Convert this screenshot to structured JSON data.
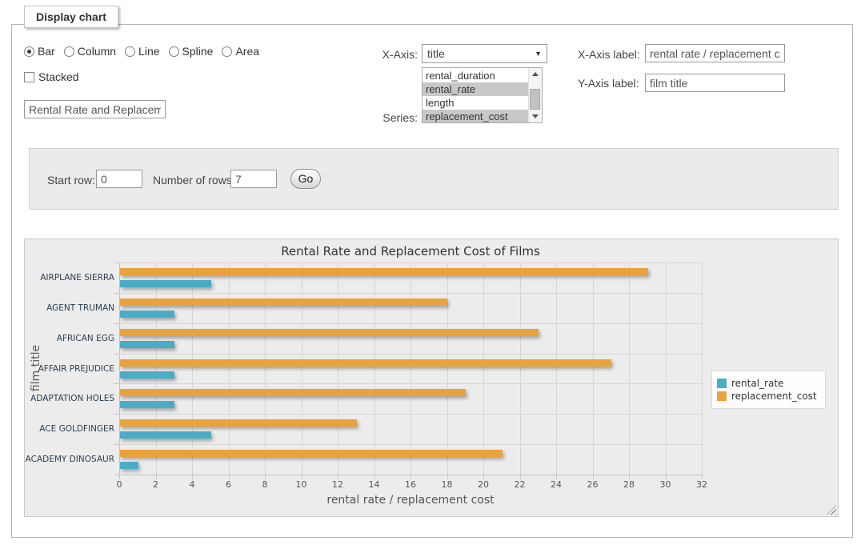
{
  "panel": {
    "title": "Display chart"
  },
  "chart_types": {
    "options": [
      {
        "label": "Bar",
        "selected": true
      },
      {
        "label": "Column",
        "selected": false
      },
      {
        "label": "Line",
        "selected": false
      },
      {
        "label": "Spline",
        "selected": false
      },
      {
        "label": "Area",
        "selected": false
      }
    ]
  },
  "stacked_checkbox": {
    "label": "Stacked",
    "checked": false
  },
  "chart_title_input": {
    "value": "Rental Rate and Replacement Cost of Films"
  },
  "x_axis_select": {
    "label": "X-Axis:",
    "value": "title"
  },
  "series_list": {
    "label": "Series:",
    "options": [
      {
        "label": "rental_duration",
        "selected": false
      },
      {
        "label": "rental_rate",
        "selected": true
      },
      {
        "label": "length",
        "selected": false
      },
      {
        "label": "replacement_cost",
        "selected": true
      }
    ]
  },
  "x_axis_label_input": {
    "label": "X-Axis label:",
    "value": "rental rate / replacement cost"
  },
  "y_axis_label_input": {
    "label": "Y-Axis label:",
    "value": "film title"
  },
  "row_controls": {
    "start_row_label": "Start row:",
    "start_row_value": "0",
    "number_of_rows_label": "Number of rows:",
    "number_of_rows_value": "7",
    "go_button": "Go"
  },
  "chart_data": {
    "type": "bar",
    "title": "Rental Rate and Replacement Cost of Films",
    "xlabel": "rental rate / replacement cost",
    "ylabel": "film title",
    "categories": [
      "AIRPLANE SIERRA",
      "AGENT TRUMAN",
      "AFRICAN EGG",
      "AFFAIR PREJUDICE",
      "ADAPTATION HOLES",
      "ACE GOLDFINGER",
      "ACADEMY DINOSAUR"
    ],
    "series": [
      {
        "name": "rental_rate",
        "color": "#4BACC6",
        "values": [
          4.99,
          2.99,
          2.99,
          2.99,
          2.99,
          4.99,
          0.99
        ]
      },
      {
        "name": "replacement_cost",
        "color": "#EAA23C",
        "values": [
          28.99,
          17.99,
          22.99,
          26.99,
          18.99,
          12.99,
          20.99
        ]
      }
    ],
    "xlim": [
      0,
      32
    ],
    "xticks": [
      0,
      2,
      4,
      6,
      8,
      10,
      12,
      14,
      16,
      18,
      20,
      22,
      24,
      26,
      28,
      30,
      32
    ],
    "grid": true,
    "legend_position": "right"
  }
}
